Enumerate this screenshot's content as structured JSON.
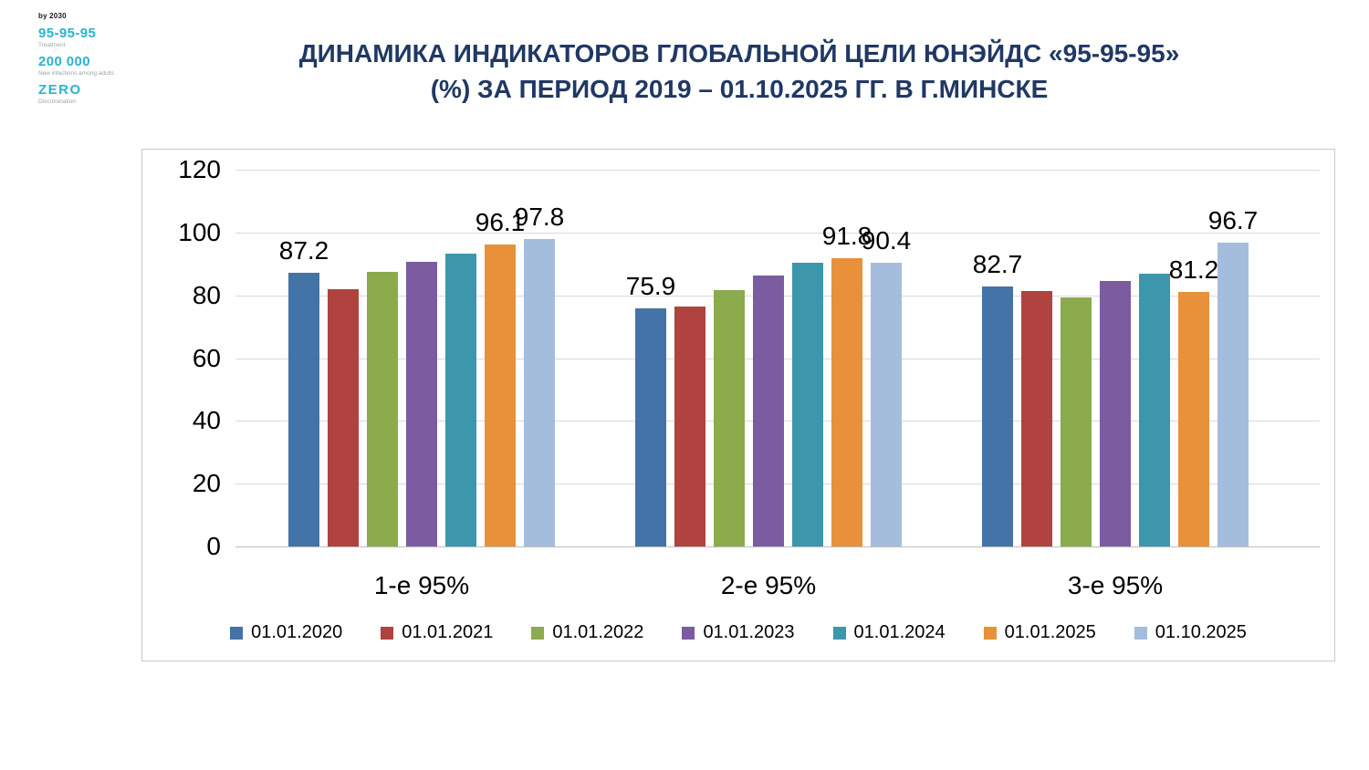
{
  "logo": {
    "tagline": "by 2030",
    "items": [
      {
        "big": "95-95-95",
        "small": "Treatment"
      },
      {
        "big": "200 000",
        "small": "New infections among adults"
      },
      {
        "big": "ZERO",
        "small": "Discrimination"
      }
    ],
    "accent_color": "#2ab3cd"
  },
  "title": {
    "line1": "ДИНАМИКА ИНДИКАТОРОВ ГЛОБАЛЬНОЙ ЦЕЛИ ЮНЭЙДС «95-95-95»",
    "line2": "(%) ЗА ПЕРИОД 2019 – 01.10.2025 ГГ. В Г.МИНСКЕ",
    "color": "#203864"
  },
  "chart_data": {
    "type": "bar",
    "title": "ДИНАМИКА ИНДИКАТОРОВ ГЛОБАЛЬНОЙ ЦЕЛИ ЮНЭЙДС «95-95-95» (%) ЗА ПЕРИОД 2019 – 01.10.2025 ГГ. В Г.МИНСКЕ",
    "categories": [
      "1-е 95%",
      "2-е 95%",
      "3-е 95%"
    ],
    "series": [
      {
        "name": "01.01.2020",
        "color": "#4473A7",
        "values": [
          87.2,
          75.9,
          82.7
        ]
      },
      {
        "name": "01.01.2021",
        "color": "#B0423F",
        "values": [
          82.0,
          76.3,
          81.5
        ]
      },
      {
        "name": "01.01.2022",
        "color": "#8BAB4D",
        "values": [
          87.4,
          81.8,
          79.2
        ]
      },
      {
        "name": "01.01.2023",
        "color": "#7B5CA1",
        "values": [
          90.6,
          86.4,
          84.5
        ]
      },
      {
        "name": "01.01.2024",
        "color": "#3D97AC",
        "values": [
          93.2,
          90.5,
          86.9
        ]
      },
      {
        "name": "01.01.2025",
        "color": "#E8913A",
        "values": [
          96.1,
          91.8,
          81.2
        ]
      },
      {
        "name": "01.10.2025",
        "color": "#A5BDDC",
        "values": [
          97.8,
          90.4,
          96.7
        ]
      }
    ],
    "labeled_series": [
      0,
      5,
      6
    ],
    "xlabel": "",
    "ylabel": "",
    "ylim": [
      0,
      120
    ],
    "yticks": [
      0,
      20,
      40,
      60,
      80,
      100,
      120
    ],
    "grid": true,
    "legend_position": "bottom"
  }
}
